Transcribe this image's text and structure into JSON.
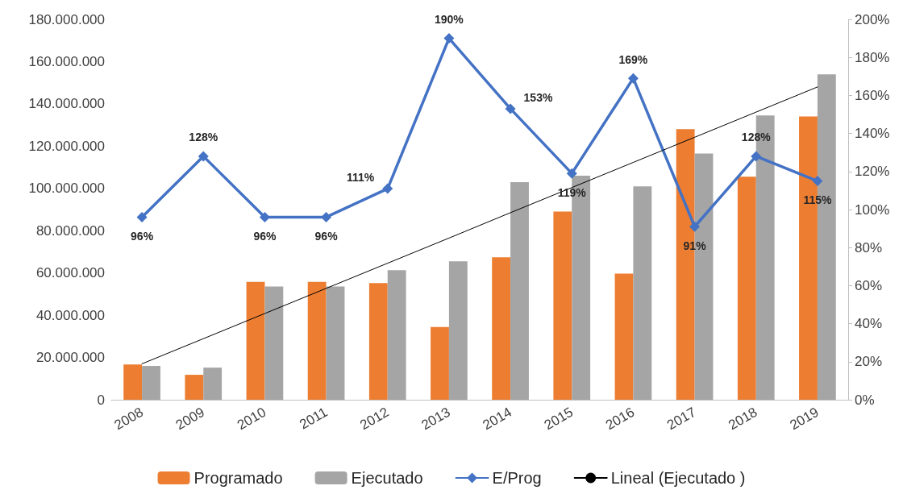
{
  "chart_data": {
    "type": "bar",
    "categories": [
      "2008",
      "2009",
      "2010",
      "2011",
      "2012",
      "2013",
      "2014",
      "2015",
      "2016",
      "2017",
      "2018",
      "2019"
    ],
    "series": [
      {
        "name": "Programado",
        "color": "#ed7d31",
        "values": [
          16700000,
          11800000,
          55800000,
          55800000,
          55200000,
          34400000,
          67400000,
          89000000,
          59700000,
          128000000,
          105500000,
          134000000
        ]
      },
      {
        "name": "Ejecutado",
        "color": "#a5a5a5",
        "values": [
          16000000,
          15200000,
          53600000,
          53600000,
          61300000,
          65500000,
          103000000,
          106000000,
          101000000,
          116500000,
          134500000,
          154000000
        ]
      },
      {
        "name": "E/Prog",
        "type": "line",
        "axis": "y2",
        "color": "#4472c4",
        "marker": "diamond",
        "line_style": "solid",
        "values": [
          96,
          128,
          96,
          96,
          111,
          190,
          153,
          119,
          169,
          91,
          128,
          115
        ],
        "value_labels": [
          "96%",
          "128%",
          "96%",
          "96%",
          "111%",
          "190%",
          "153%",
          "119%",
          "169%",
          "91%",
          "128%",
          "115%"
        ]
      },
      {
        "name": "Lineal (Ejecutado )",
        "type": "line",
        "color": "#000000",
        "marker": "none",
        "line_style": "solid",
        "values": [
          17000000,
          28900000,
          40800000,
          52700000,
          64600000,
          76500000,
          88500000,
          100400000,
          112300000,
          124200000,
          136100000,
          148000000
        ]
      }
    ],
    "ylim": [
      0,
      180000000
    ],
    "yticks": [
      0,
      {
        "value": 20000000,
        "label": "20.000.000"
      },
      {
        "value": 40000000,
        "label": "40.000.000"
      },
      {
        "value": 60000000,
        "label": "60.000.000"
      },
      {
        "value": 80000000,
        "label": "80.000.000"
      },
      {
        "value": 100000000,
        "label": "100.000.000"
      },
      {
        "value": 120000000,
        "label": "120.000.000"
      },
      {
        "value": 140000000,
        "label": "140.000.000"
      },
      {
        "value": 160000000,
        "label": "160.000.000"
      },
      {
        "value": 180000000,
        "label": "180.000.000"
      }
    ],
    "y2lim": [
      0,
      200
    ],
    "y2ticks": [
      {
        "value": 0,
        "label": "0%"
      },
      {
        "value": 20,
        "label": "20%"
      },
      {
        "value": 40,
        "label": "40%"
      },
      {
        "value": 60,
        "label": "60%"
      },
      {
        "value": 80,
        "label": "80%"
      },
      {
        "value": 100,
        "label": "100%"
      },
      {
        "value": 120,
        "label": "120%"
      },
      {
        "value": 140,
        "label": "140%"
      },
      {
        "value": 160,
        "label": "160%"
      },
      {
        "value": 180,
        "label": "180%"
      },
      {
        "value": 200,
        "label": "200%"
      }
    ],
    "grid": false,
    "legend": "bottom"
  }
}
